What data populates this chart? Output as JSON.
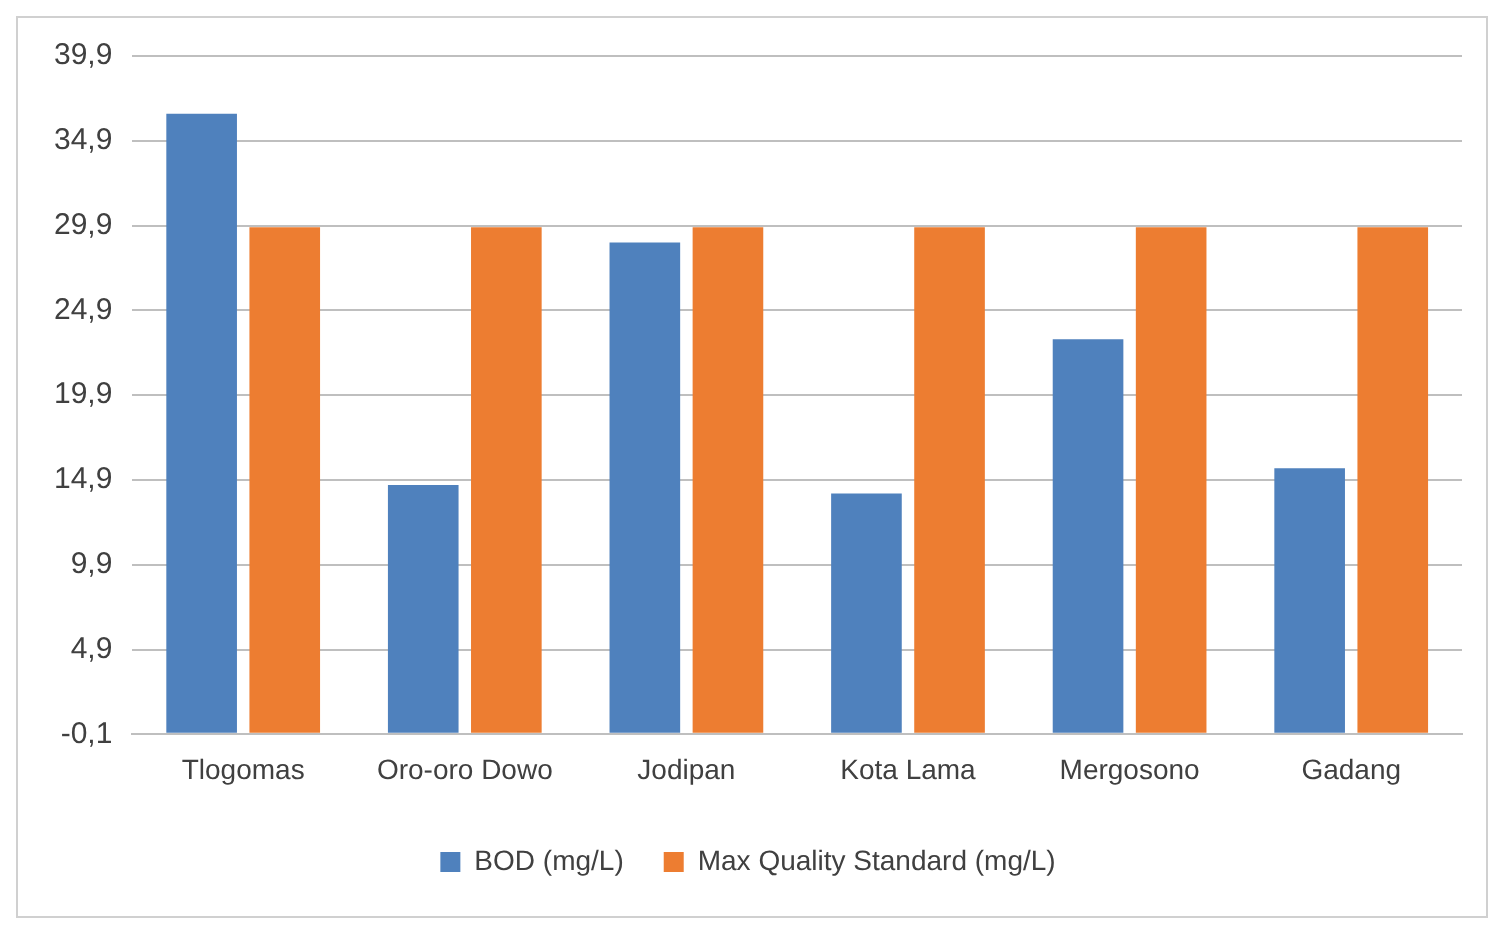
{
  "chart_data": {
    "type": "bar",
    "categories": [
      "Tlogomas",
      "Oro-oro Dowo",
      "Jodipan",
      "Kota Lama",
      "Mergosono",
      "Gadang"
    ],
    "series": [
      {
        "name": "BOD (mg/L)",
        "color": "#4f81bd",
        "values": [
          36.5,
          14.6,
          28.9,
          14.1,
          23.2,
          15.6
        ]
      },
      {
        "name": "Max Quality Standard (mg/L)",
        "color": "#ed7d31",
        "values": [
          29.8,
          29.8,
          29.8,
          29.8,
          29.8,
          29.8
        ]
      }
    ],
    "ylim": [
      -0.1,
      39.9
    ],
    "yticks": [
      {
        "value": -0.1,
        "label": "-0,1"
      },
      {
        "value": 4.9,
        "label": "4,9"
      },
      {
        "value": 9.9,
        "label": "9,9"
      },
      {
        "value": 14.9,
        "label": "14,9"
      },
      {
        "value": 19.9,
        "label": "19,9"
      },
      {
        "value": 24.9,
        "label": "24,9"
      },
      {
        "value": 29.9,
        "label": "29,9"
      },
      {
        "value": 34.9,
        "label": "34,9"
      },
      {
        "value": 39.9,
        "label": "39,9"
      }
    ],
    "grid": "y",
    "legend": "bottom"
  }
}
